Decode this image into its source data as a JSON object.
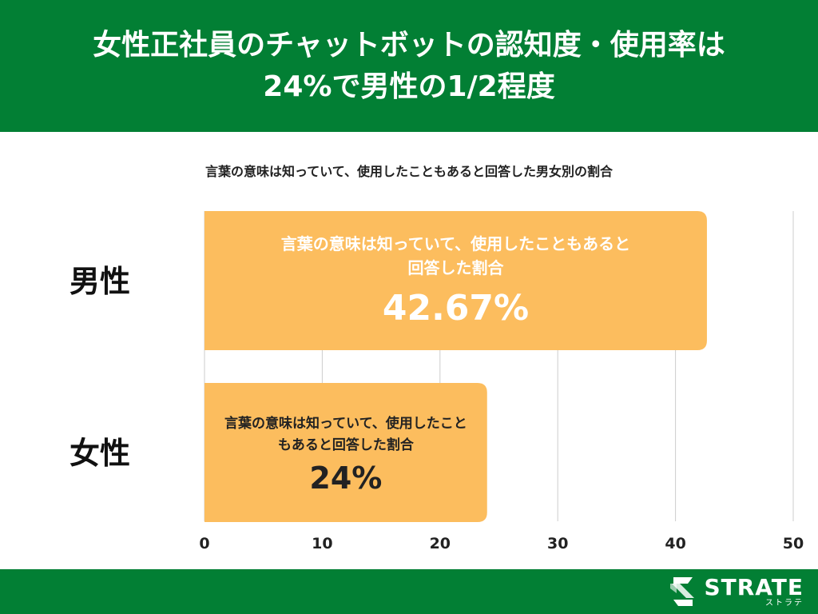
{
  "header": {
    "title_line1": "女性正社員のチャットボットの認知度・使用率は",
    "title_line2": "24%で男性の1/2程度"
  },
  "colors": {
    "header_bg": "#027f34",
    "bar": "#fcbd5e",
    "grid": "#cccccc",
    "bar_text": "#ffffff"
  },
  "chart_data": {
    "type": "bar",
    "orientation": "horizontal",
    "title": "言葉の意味は知っていて、使用したこともあると回答した男女別の割合",
    "categories": [
      "男性",
      "女性"
    ],
    "series": [
      {
        "values": [
          42.67,
          24
        ],
        "value_labels": [
          "42.67%",
          "24%"
        ],
        "bar_labels": [
          [
            "言葉の意味は知っていて、使用したこともあると",
            "回答した割合"
          ],
          [
            "言葉の意味は知っていて、使用したこと",
            "もあると回答した割合"
          ]
        ]
      }
    ],
    "xlim": [
      0,
      50
    ],
    "xticks": [
      0,
      10,
      20,
      30,
      40,
      50
    ],
    "grid": true
  },
  "footer": {
    "logo_icon": "strate-s-logo-icon",
    "logo_text": "STRATE",
    "logo_kana": "ストラテ"
  }
}
